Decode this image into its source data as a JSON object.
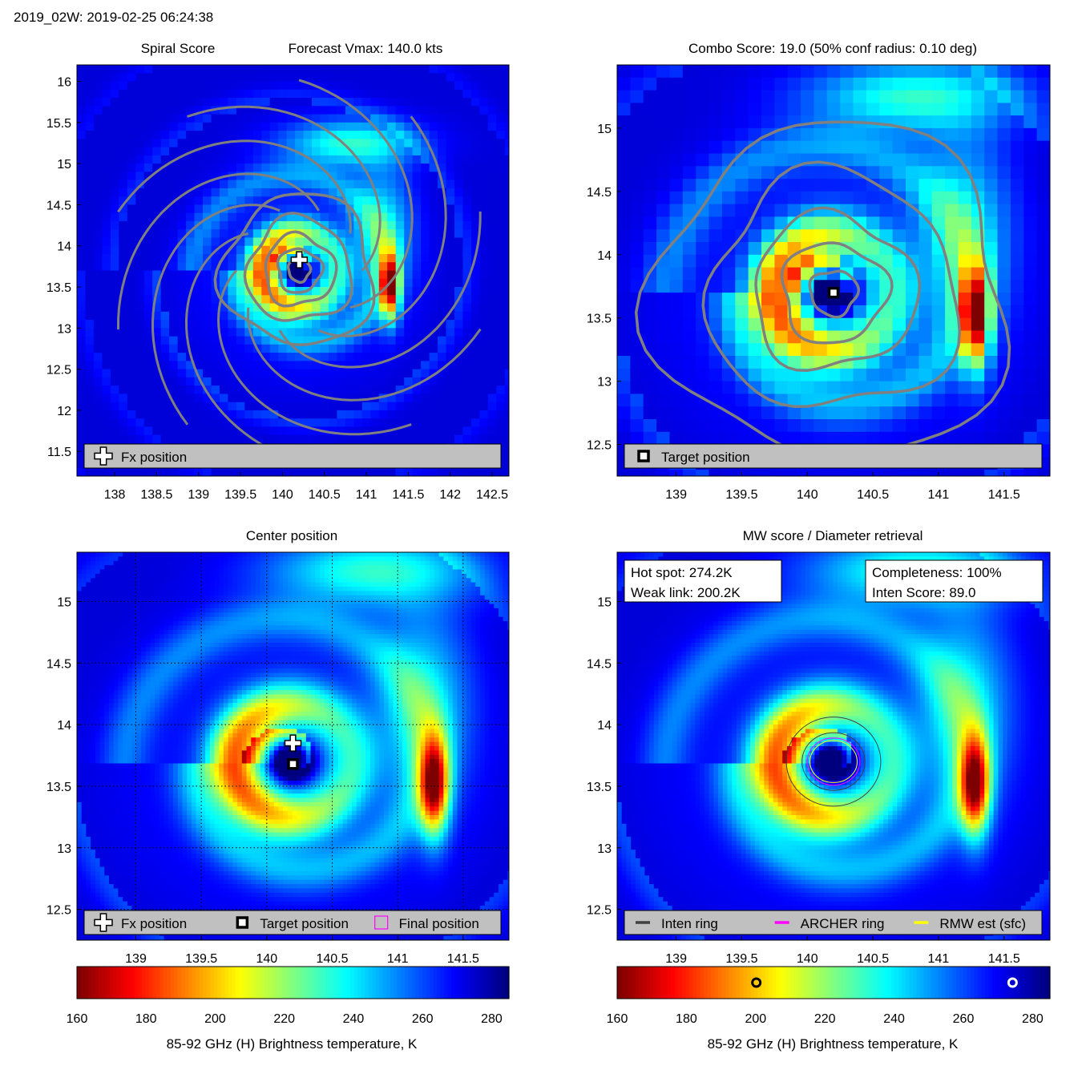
{
  "figure": {
    "header": "2019_02W: 2019-02-25 06:24:38",
    "colormap_stops": [
      "#7f0000",
      "#ff0000",
      "#ff8000",
      "#ffff00",
      "#80ff80",
      "#00ffff",
      "#0080ff",
      "#0000ff",
      "#00007f"
    ]
  },
  "chart_data": [
    {
      "id": "spiral",
      "type": "heatmap",
      "title": "Spiral Score",
      "title_right": "Forecast Vmax: 140.0 kts",
      "xlim": [
        137.55,
        142.7
      ],
      "ylim": [
        11.2,
        16.2
      ],
      "x_ticks": [
        "138",
        "138.5",
        "139",
        "139.5",
        "140",
        "140.5",
        "141",
        "141.5",
        "142",
        "142.5"
      ],
      "y_ticks": [
        "11.5",
        "12",
        "12.5",
        "13",
        "13.5",
        "14",
        "14.5",
        "15",
        "15.5",
        "16"
      ],
      "center": [
        140.2,
        13.7
      ],
      "markers": [
        {
          "kind": "fx",
          "x": 140.2,
          "y": 13.83
        }
      ],
      "legend": [
        {
          "symbol": "fx",
          "label": "Fx position"
        }
      ]
    },
    {
      "id": "combo",
      "type": "heatmap",
      "title": "Combo Score: 19.0  (50% conf radius: 0.10 deg)",
      "xlim": [
        138.55,
        141.85
      ],
      "ylim": [
        12.25,
        15.5
      ],
      "x_ticks": [
        "139",
        "139.5",
        "140",
        "140.5",
        "141",
        "141.5"
      ],
      "y_ticks": [
        "12.5",
        "13",
        "13.5",
        "14",
        "14.5",
        "15"
      ],
      "center": [
        140.2,
        13.7
      ],
      "markers": [
        {
          "kind": "target",
          "x": 140.2,
          "y": 13.7
        }
      ],
      "legend": [
        {
          "symbol": "target",
          "label": "Target position"
        }
      ]
    },
    {
      "id": "center",
      "type": "heatmap",
      "title": "Center position",
      "xlim": [
        138.55,
        141.85
      ],
      "ylim": [
        12.25,
        15.4
      ],
      "x_ticks": [
        "139",
        "139.5",
        "140",
        "140.5",
        "141",
        "141.5"
      ],
      "y_ticks": [
        "12.5",
        "13",
        "13.5",
        "14",
        "14.5",
        "15"
      ],
      "grid": true,
      "center": [
        140.2,
        13.7
      ],
      "markers": [
        {
          "kind": "fx",
          "x": 140.2,
          "y": 13.85
        },
        {
          "kind": "target",
          "x": 140.2,
          "y": 13.68
        }
      ],
      "legend": [
        {
          "symbol": "fx",
          "label": "Fx position"
        },
        {
          "symbol": "target",
          "label": "Target position"
        },
        {
          "symbol": "final",
          "label": "Final position"
        }
      ],
      "colorbar": {
        "range": [
          160,
          285
        ],
        "ticks": [
          "160",
          "180",
          "200",
          "220",
          "240",
          "260",
          "280"
        ],
        "label": "85-92 GHz (H) Brightness temperature, K"
      }
    },
    {
      "id": "mw",
      "type": "heatmap",
      "title": "MW score / Diameter retrieval",
      "xlim": [
        138.55,
        141.85
      ],
      "ylim": [
        12.25,
        15.4
      ],
      "x_ticks": [
        "139",
        "139.5",
        "140",
        "140.5",
        "141",
        "141.5"
      ],
      "y_ticks": [
        "12.5",
        "13",
        "13.5",
        "14",
        "14.5",
        "15"
      ],
      "center": [
        140.2,
        13.7
      ],
      "info_left": [
        "Hot spot: 274.2K",
        "Weak link: 200.2K"
      ],
      "info_right": [
        "Completeness: 100%",
        "Inten Score: 89.0"
      ],
      "legend": [
        {
          "symbol": "inten",
          "label": "Inten ring",
          "color": "#404040"
        },
        {
          "symbol": "archer",
          "label": "ARCHER ring",
          "color": "#ff00ff"
        },
        {
          "symbol": "rmw",
          "label": "RMW est (sfc)",
          "color": "#ffff00"
        }
      ],
      "colorbar": {
        "range": [
          160,
          285
        ],
        "ticks": [
          "160",
          "180",
          "200",
          "220",
          "240",
          "260",
          "280"
        ],
        "label": "85-92 GHz (H) Brightness temperature, K",
        "markers": [
          200.2,
          274.2
        ]
      }
    }
  ]
}
